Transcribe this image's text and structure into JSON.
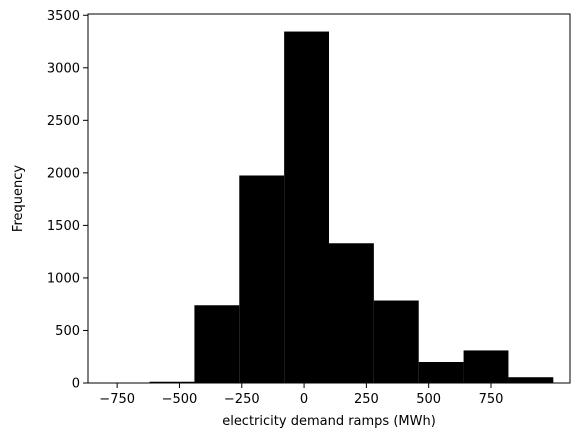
{
  "chart_data": {
    "type": "bar",
    "title": "",
    "xlabel": "electricity demand ramps (MWh)",
    "ylabel": "Frequency",
    "bin_edges": [
      -800,
      -620,
      -440,
      -260,
      -80,
      100,
      280,
      460,
      640,
      820,
      1000
    ],
    "values": [
      3,
      12,
      740,
      1975,
      3345,
      1330,
      785,
      200,
      310,
      55
    ],
    "xlim": [
      -867,
      1067
    ],
    "ylim": [
      0,
      3512
    ],
    "xticks": [
      -750,
      -500,
      -250,
      0,
      250,
      500,
      750
    ],
    "xtick_labels": [
      "−750",
      "−500",
      "−250",
      "0",
      "250",
      "500",
      "750"
    ],
    "yticks": [
      0,
      500,
      1000,
      1500,
      2000,
      2500,
      3000,
      3500
    ],
    "ytick_labels": [
      "0",
      "500",
      "1000",
      "1500",
      "2000",
      "2500",
      "3000",
      "3500"
    ],
    "bar_color": "#000000",
    "grid": false,
    "legend": "none"
  }
}
